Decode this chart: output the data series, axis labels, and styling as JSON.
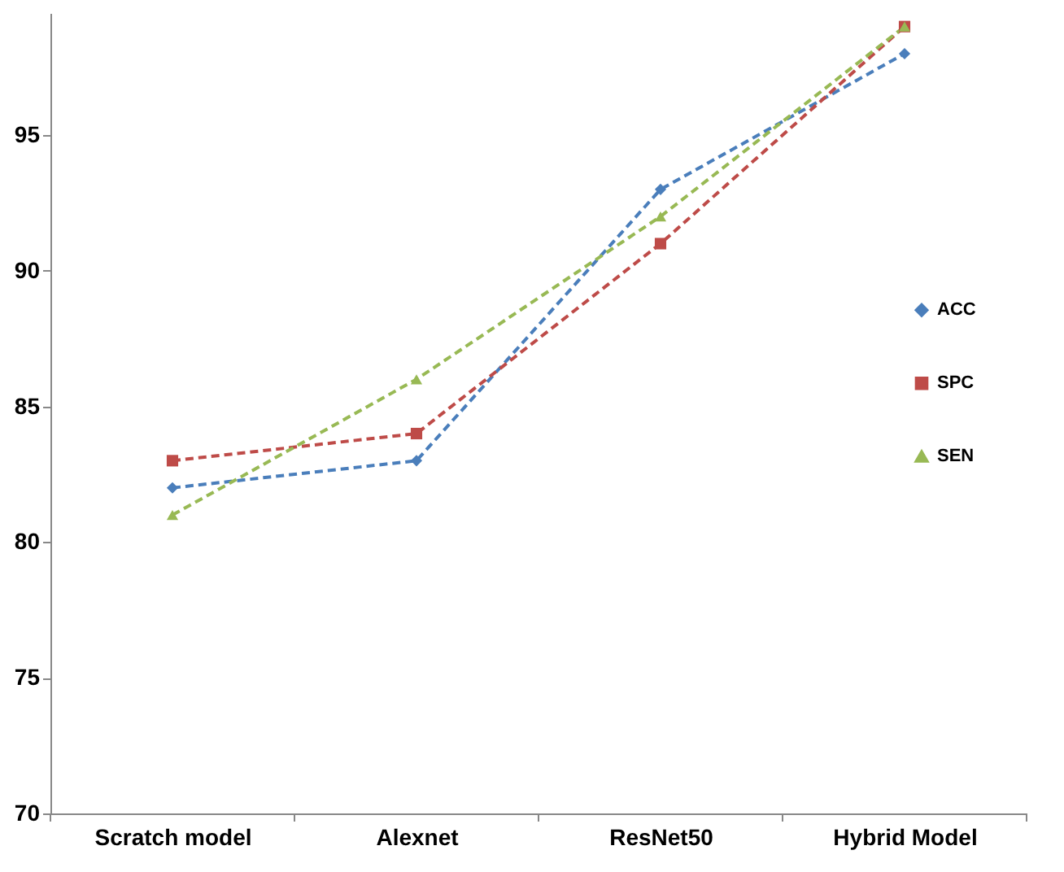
{
  "chart_data": {
    "type": "line",
    "categories": [
      "Scratch model",
      "Alexnet",
      "ResNet50",
      "Hybrid Model"
    ],
    "series": [
      {
        "name": "ACC",
        "color": "#4a7ebb",
        "values": [
          82,
          83,
          93,
          98
        ],
        "marker": "diamond"
      },
      {
        "name": "SPC",
        "color": "#be4b48",
        "values": [
          83,
          84,
          91,
          99
        ],
        "marker": "square"
      },
      {
        "name": "SEN",
        "color": "#98b954",
        "values": [
          81,
          86,
          92,
          99
        ],
        "marker": "triangle"
      }
    ],
    "ylim": [
      70,
      99.5
    ],
    "yticks": [
      70,
      75,
      80,
      85,
      90,
      95
    ],
    "grid": false,
    "legend": "right",
    "line_style": "dashed"
  }
}
